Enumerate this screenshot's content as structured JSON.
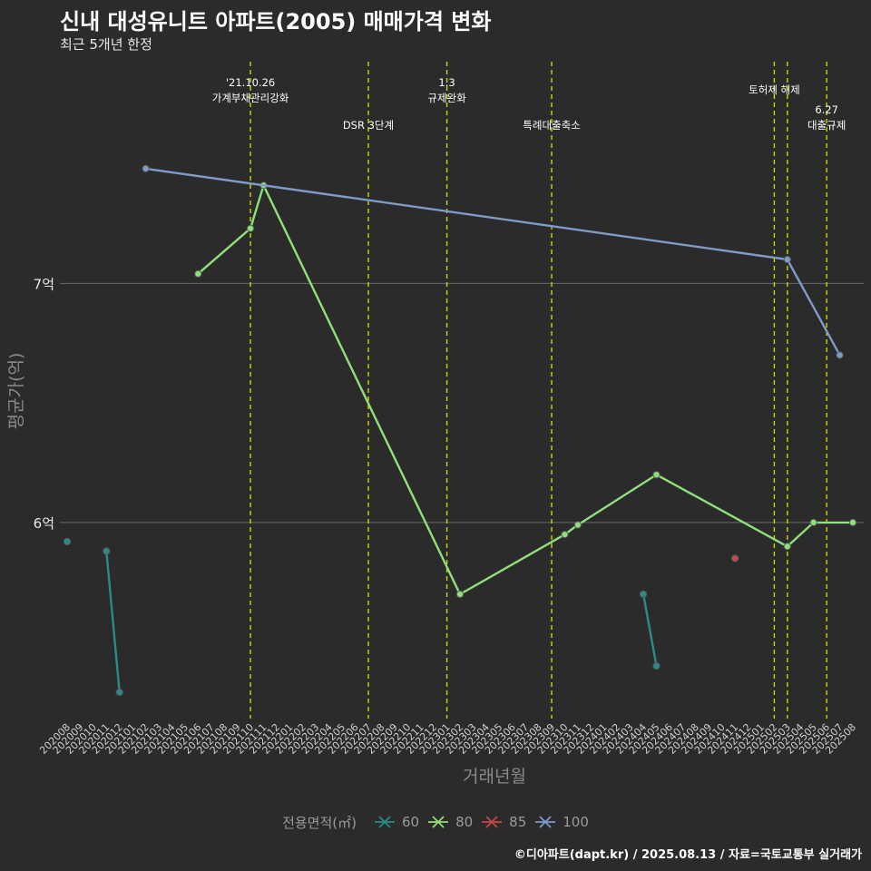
{
  "title": "신내 대성유니트 아파트(2005) 매매가격 변화",
  "subtitle": "최근 5개년 한정",
  "caption": "©디아파트(dapt.kr) / 2025.08.13 / 자료=국토교통부 실거래가",
  "chart_data": {
    "type": "line",
    "xlabel": "거래년월",
    "ylabel": "평균가(억)",
    "categories": [
      "202008",
      "202009",
      "202010",
      "202011",
      "202012",
      "202101",
      "202102",
      "202103",
      "202104",
      "202105",
      "202106",
      "202107",
      "202108",
      "202109",
      "202110",
      "202111",
      "202112",
      "202201",
      "202202",
      "202203",
      "202204",
      "202205",
      "202206",
      "202207",
      "202208",
      "202209",
      "202210",
      "202211",
      "202212",
      "202301",
      "202302",
      "202303",
      "202304",
      "202305",
      "202306",
      "202307",
      "202308",
      "202309",
      "202310",
      "202311",
      "202312",
      "202401",
      "202402",
      "202403",
      "202404",
      "202405",
      "202406",
      "202407",
      "202408",
      "202409",
      "202410",
      "202411",
      "202412",
      "202501",
      "202502",
      "202503",
      "202504",
      "202505",
      "202506",
      "202507",
      "202508"
    ],
    "yticks": [
      {
        "value": 6,
        "label": "6억"
      },
      {
        "value": 7,
        "label": "7억"
      }
    ],
    "ylim": [
      5.18,
      7.95
    ],
    "grid": true,
    "legend": {
      "title": "전용면적(㎡)",
      "position": "bottom"
    },
    "series": [
      {
        "name": "60",
        "color": "#2a8c8a",
        "segments": [
          [
            [
              "202008",
              5.92
            ]
          ],
          [
            [
              "202011",
              5.88
            ],
            [
              "202012",
              5.29
            ]
          ],
          [
            [
              "202404",
              5.7
            ],
            [
              "202405",
              5.4
            ]
          ]
        ]
      },
      {
        "name": "80",
        "color": "#8fe07a",
        "segments": [
          [
            [
              "202106",
              7.04
            ],
            [
              "202110",
              7.23
            ],
            [
              "202111",
              7.41
            ],
            [
              "202302",
              5.7
            ],
            [
              "202310",
              5.95
            ],
            [
              "202311",
              5.99
            ],
            [
              "202405",
              6.2
            ],
            [
              "202503",
              5.9
            ],
            [
              "202505",
              6.0
            ],
            [
              "202508",
              6.0
            ]
          ]
        ]
      },
      {
        "name": "85",
        "color": "#c8454b",
        "segments": [
          [
            [
              "202411",
              5.85
            ]
          ]
        ]
      },
      {
        "name": "100",
        "color": "#7f9bc8",
        "segments": [
          [
            [
              "202102",
              7.48
            ],
            [
              "202503",
              7.1
            ],
            [
              "202507",
              6.7
            ]
          ]
        ]
      }
    ],
    "events": [
      {
        "x": "202110",
        "lines": [
          "'21.10.26",
          "가계부채관리강화"
        ],
        "level": 0
      },
      {
        "x": "202207",
        "lines": [
          "DSR 3단계"
        ],
        "level": 1
      },
      {
        "x": "202301",
        "lines": [
          "1.3",
          "규제완화"
        ],
        "level": 0
      },
      {
        "x": "202309",
        "lines": [
          "특례대출축소"
        ],
        "level": 1
      },
      {
        "x": "202502",
        "lines": [
          "토허제 해제"
        ],
        "level": 0
      },
      {
        "x": "202503",
        "lines": [],
        "level": 0
      },
      {
        "x": "202506",
        "lines": [
          "6.27",
          "대출규제"
        ],
        "level": 1
      }
    ]
  }
}
